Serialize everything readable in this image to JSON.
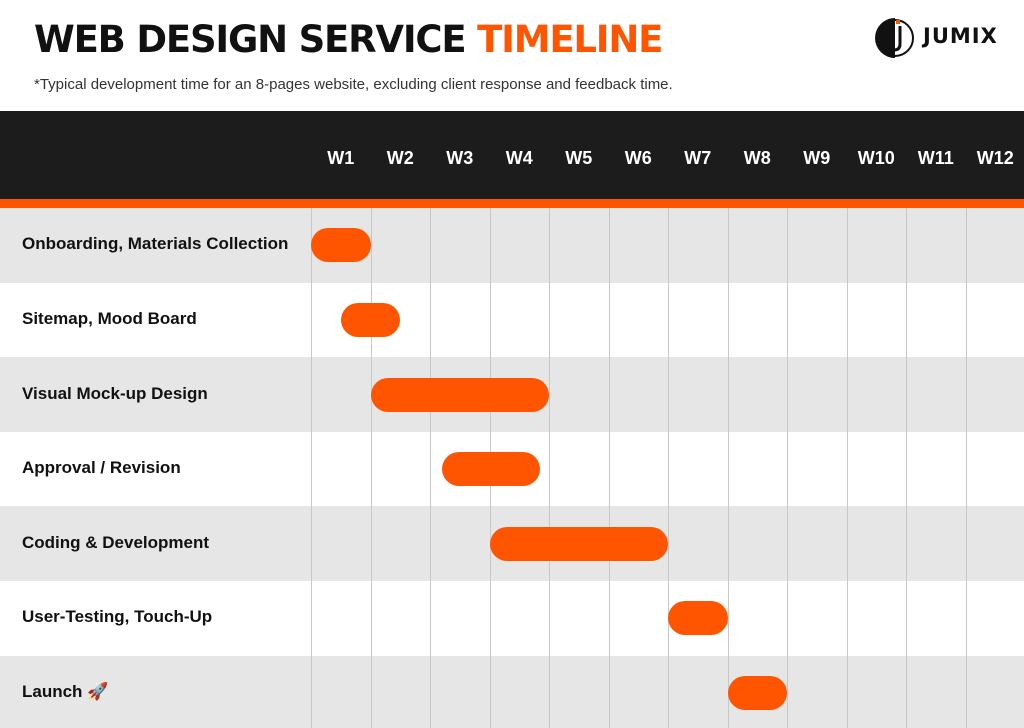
{
  "header": {
    "title_main": "WEB DESIGN SERVICE ",
    "title_accent": "TIMELINE",
    "subtitle": "*Typical development time for an 8-pages website, excluding client response and feedback time.",
    "brand": "JUMIX"
  },
  "colors": {
    "accent": "#ff5500",
    "header_band": "#1c1c1c",
    "row_alt": "#e6e6e6",
    "row_plain": "#ffffff",
    "grid": "#c8c8c8"
  },
  "chart_data": {
    "type": "gantt",
    "title": "WEB DESIGN SERVICE TIMELINE",
    "subtitle": "*Typical development time for an 8-pages website, excluding client response and feedback time.",
    "categories": [
      "W1",
      "W2",
      "W3",
      "W4",
      "W5",
      "W6",
      "W7",
      "W8",
      "W9",
      "W10",
      "W11",
      "W12"
    ],
    "x_unit": "week",
    "xlim": [
      0,
      12
    ],
    "grid": true,
    "tasks": [
      {
        "name": "Onboarding, Materials Collection",
        "start": 0.0,
        "end": 1.0
      },
      {
        "name": "Sitemap, Mood Board",
        "start": 0.5,
        "end": 1.5
      },
      {
        "name": "Visual Mock-up Design",
        "start": 1.0,
        "end": 4.0
      },
      {
        "name": "Approval / Revision",
        "start": 2.2,
        "end": 3.85
      },
      {
        "name": "Coding & Development",
        "start": 3.0,
        "end": 6.0
      },
      {
        "name": "User-Testing, Touch-Up",
        "start": 6.0,
        "end": 7.0
      },
      {
        "name": "Launch 🚀",
        "start": 7.0,
        "end": 8.0
      }
    ]
  }
}
